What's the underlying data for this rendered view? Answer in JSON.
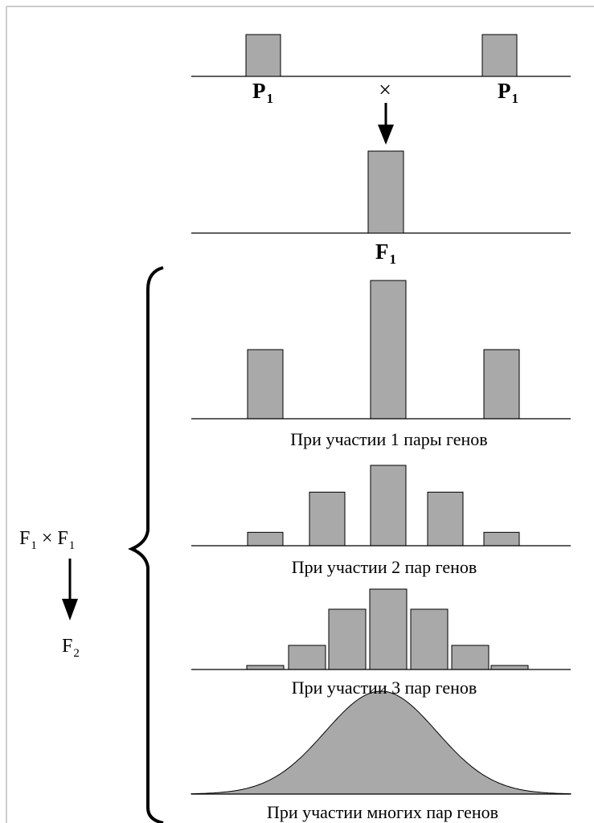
{
  "diagram": {
    "parents": {
      "left_label": {
        "letter": "P",
        "sub": "1"
      },
      "cross_symbol": "×",
      "right_label": {
        "letter": "P",
        "sub": "1"
      }
    },
    "f1": {
      "label": {
        "letter": "F",
        "sub": "1"
      }
    },
    "side": {
      "cross": {
        "a_letter": "F",
        "a_sub": "1",
        "times": "×",
        "b_letter": "F",
        "b_sub": "1"
      },
      "result": {
        "letter": "F",
        "sub": "2"
      }
    },
    "distributions": [
      {
        "caption": "При участии 1 пары генов",
        "values": [
          1,
          2,
          1
        ]
      },
      {
        "caption": "При участии 2 пар генов",
        "values": [
          1,
          4,
          6,
          4,
          1
        ]
      },
      {
        "caption": "При участии 3 пар генов",
        "values": [
          1,
          6,
          15,
          20,
          15,
          6,
          1
        ]
      },
      {
        "caption": "При участии многих пар генов",
        "shape": "normal-curve"
      }
    ],
    "colors": {
      "fill": "#a9a9a9",
      "stroke": "#000000",
      "frame": "#cccccc"
    }
  }
}
